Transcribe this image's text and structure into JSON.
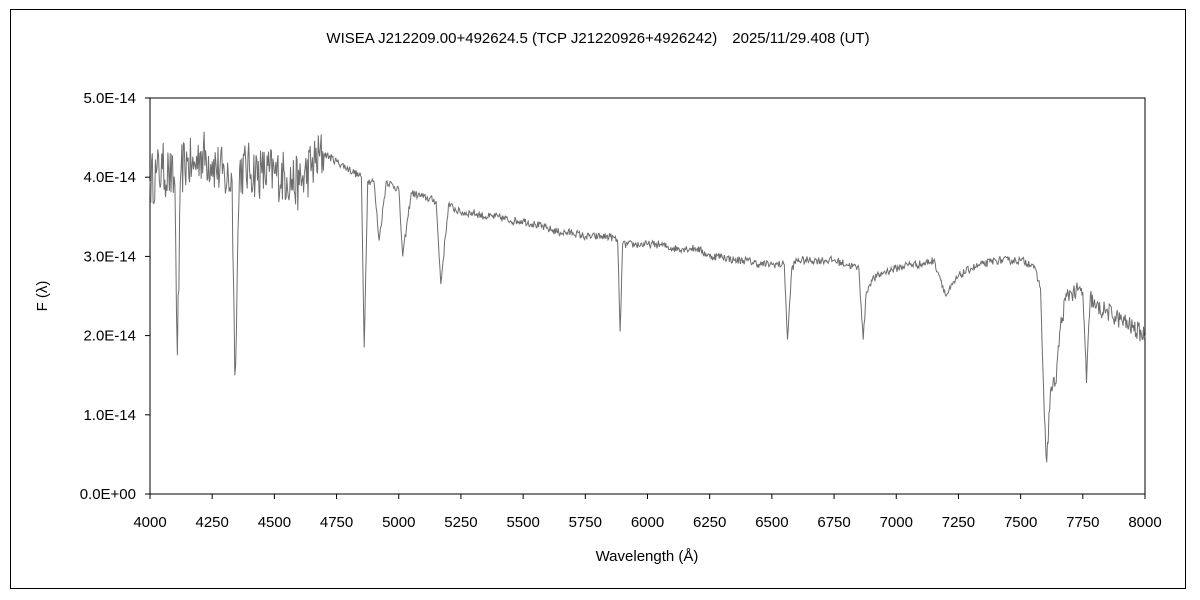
{
  "chart_data": {
    "type": "line",
    "title": "WISEA J212209.00+492624.5 (TCP J21220926+4926242)　2025/11/29.408 (UT)",
    "xlabel": "Wavelength (Å)",
    "ylabel": "F (λ)",
    "xlim": [
      4000,
      8000
    ],
    "ylim": [
      0,
      5e-14
    ],
    "xticks": [
      4000,
      4250,
      4500,
      4750,
      5000,
      5250,
      5500,
      5750,
      6000,
      6250,
      6500,
      6750,
      7000,
      7250,
      7500,
      7750,
      8000
    ],
    "xtick_labels": [
      "4000",
      "4250",
      "4500",
      "4750",
      "5000",
      "5250",
      "5500",
      "5750",
      "6000",
      "6250",
      "6500",
      "6750",
      "7000",
      "7250",
      "7500",
      "7750",
      "8000"
    ],
    "yticks": [
      0,
      1e-14,
      2e-14,
      3e-14,
      4e-14,
      5e-14
    ],
    "ytick_labels": [
      "0.0E+00",
      "1.0E-14",
      "2.0E-14",
      "3.0E-14",
      "4.0E-14",
      "5.0E-14"
    ],
    "grid": false,
    "legend": "none",
    "line_color": "#6e6e6e",
    "series": [
      {
        "x": [
          4000,
          4025,
          4050,
          4075,
          4100,
          4110,
          4125,
          4150,
          4175,
          4200,
          4250,
          4300,
          4330,
          4341,
          4360,
          4400,
          4450,
          4500,
          4550,
          4600,
          4650,
          4700,
          4750,
          4800,
          4850,
          4861,
          4875,
          4900,
          4921,
          4950,
          5000,
          5016,
          5050,
          5100,
          5150,
          5169,
          5200,
          5250,
          5300,
          5350,
          5400,
          5450,
          5500,
          5550,
          5600,
          5650,
          5700,
          5750,
          5800,
          5850,
          5880,
          5890,
          5900,
          5950,
          6000,
          6050,
          6100,
          6150,
          6200,
          6250,
          6300,
          6350,
          6400,
          6450,
          6500,
          6550,
          6563,
          6580,
          6600,
          6650,
          6700,
          6750,
          6800,
          6850,
          6867,
          6880,
          6900,
          6950,
          7000,
          7050,
          7100,
          7150,
          7175,
          7200,
          7250,
          7300,
          7350,
          7400,
          7450,
          7500,
          7550,
          7580,
          7595,
          7605,
          7620,
          7640,
          7660,
          7680,
          7700,
          7750,
          7765,
          7780,
          7800,
          7850,
          7900,
          7950,
          8000
        ],
        "y": [
          3.95e-14,
          4.05e-14,
          4.1e-14,
          4.05e-14,
          3.9e-14,
          1.75e-14,
          4.1e-14,
          4.2e-14,
          4.1e-14,
          4.3e-14,
          4.2e-14,
          4e-14,
          3.95e-14,
          1.5e-14,
          4.1e-14,
          4.1e-14,
          4.05e-14,
          4.05e-14,
          4e-14,
          3.9e-14,
          4.15e-14,
          4.3e-14,
          4.2e-14,
          4.1e-14,
          4e-14,
          1.85e-14,
          3.95e-14,
          3.95e-14,
          3.2e-14,
          3.95e-14,
          3.85e-14,
          3e-14,
          3.8e-14,
          3.75e-14,
          3.7e-14,
          2.65e-14,
          3.65e-14,
          3.55e-14,
          3.55e-14,
          3.5e-14,
          3.5e-14,
          3.45e-14,
          3.45e-14,
          3.4e-14,
          3.35e-14,
          3.3e-14,
          3.3e-14,
          3.25e-14,
          3.25e-14,
          3.25e-14,
          3.2e-14,
          2.05e-14,
          3.15e-14,
          3.15e-14,
          3.15e-14,
          3.15e-14,
          3.1e-14,
          3.1e-14,
          3.1e-14,
          3e-14,
          3e-14,
          2.95e-14,
          2.95e-14,
          2.9e-14,
          2.9e-14,
          2.9e-14,
          1.95e-14,
          2.85e-14,
          2.95e-14,
          2.95e-14,
          2.95e-14,
          2.95e-14,
          2.9e-14,
          2.85e-14,
          1.95e-14,
          2.55e-14,
          2.7e-14,
          2.8e-14,
          2.85e-14,
          2.9e-14,
          2.9e-14,
          2.95e-14,
          2.75e-14,
          2.5e-14,
          2.75e-14,
          2.85e-14,
          2.9e-14,
          2.95e-14,
          2.95e-14,
          2.95e-14,
          2.9e-14,
          2.6e-14,
          1e-14,
          4e-15,
          1.3e-14,
          1.4e-14,
          2.1e-14,
          2.45e-14,
          2.55e-14,
          2.55e-14,
          1.4e-14,
          2.5e-14,
          2.35e-14,
          2.3e-14,
          2.2e-14,
          2.1e-14,
          2e-14
        ]
      }
    ]
  }
}
